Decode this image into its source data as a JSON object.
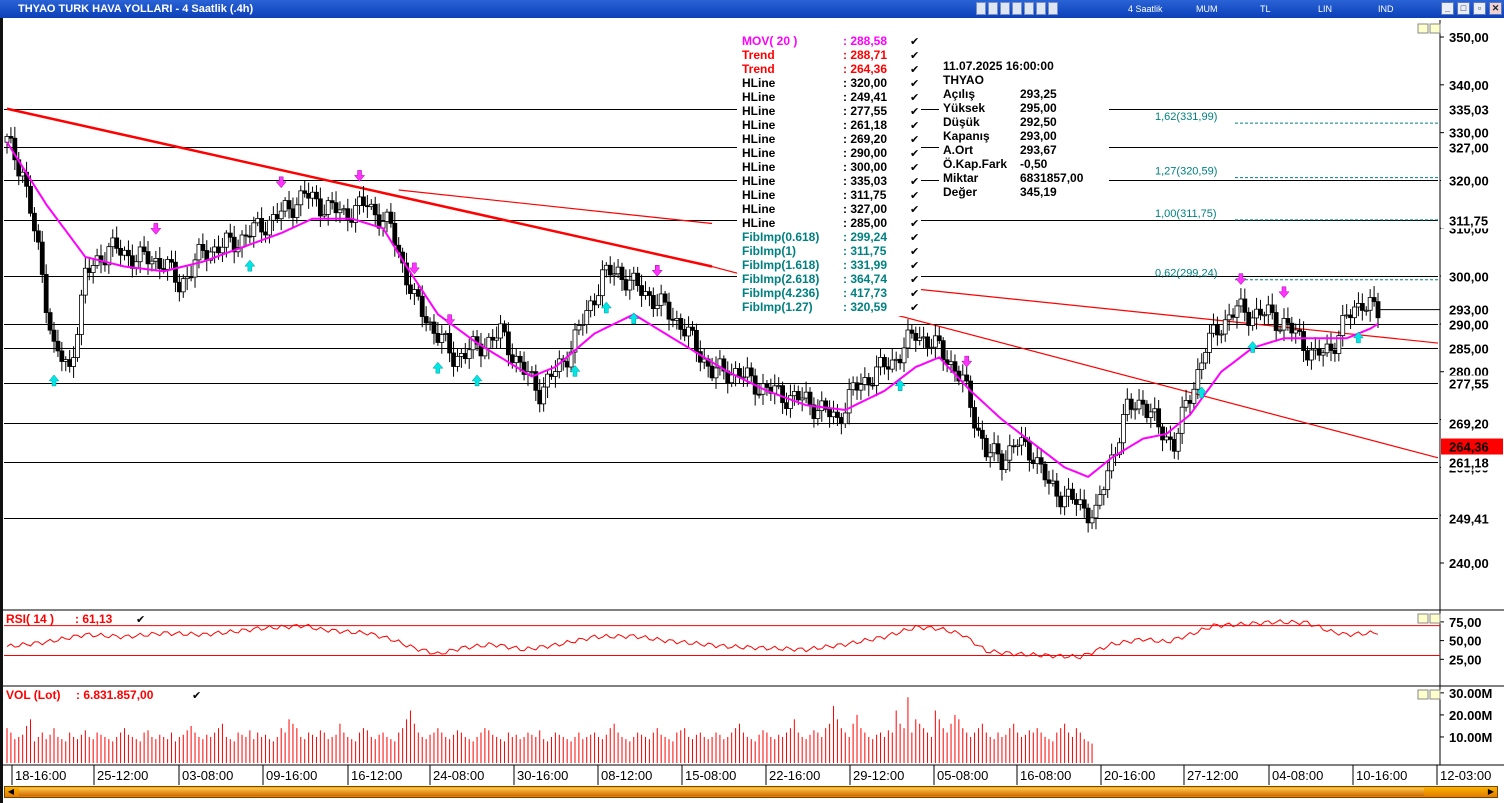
{
  "window": {
    "title": "THYAO TURK HAVA YOLLARI - 4 Saatlik (.4h)",
    "menu": [
      "4 Saatlik",
      "MUM",
      "TL",
      "LIN",
      "IND"
    ]
  },
  "colors": {
    "up": "#ffffff",
    "down": "#000000",
    "mov": "#ff00ff",
    "trend": "#ff0000",
    "hline": "#000000",
    "fib": "#008080",
    "rsi": "#ff0000",
    "vol": "#ff0000",
    "highlight": "#ff0000"
  },
  "legend": {
    "rows": [
      {
        "name": "MOV( 20 )",
        "value": ": 288,58",
        "color": "#ff00ff"
      },
      {
        "name": "Trend",
        "value": ": 288,71",
        "color": "#ff0000"
      },
      {
        "name": "Trend",
        "value": ": 264,36",
        "color": "#ff0000"
      },
      {
        "name": "HLine",
        "value": ": 320,00",
        "color": "#000000"
      },
      {
        "name": "HLine",
        "value": ": 249,41",
        "color": "#000000"
      },
      {
        "name": "HLine",
        "value": ": 277,55",
        "color": "#000000"
      },
      {
        "name": "HLine",
        "value": ": 261,18",
        "color": "#000000"
      },
      {
        "name": "HLine",
        "value": ": 269,20",
        "color": "#000000"
      },
      {
        "name": "HLine",
        "value": ": 290,00",
        "color": "#000000"
      },
      {
        "name": "HLine",
        "value": ": 300,00",
        "color": "#000000"
      },
      {
        "name": "HLine",
        "value": ": 335,03",
        "color": "#000000"
      },
      {
        "name": "HLine",
        "value": ": 311,75",
        "color": "#000000"
      },
      {
        "name": "HLine",
        "value": ": 327,00",
        "color": "#000000"
      },
      {
        "name": "HLine",
        "value": ": 285,00",
        "color": "#000000"
      },
      {
        "name": "FibImp(0.618)",
        "value": ": 299,24",
        "color": "#008080"
      },
      {
        "name": "FibImp(1)",
        "value": ": 311,75",
        "color": "#008080"
      },
      {
        "name": "FibImp(1.618)",
        "value": ": 331,99",
        "color": "#008080"
      },
      {
        "name": "FibImp(2.618)",
        "value": ": 364,74",
        "color": "#008080"
      },
      {
        "name": "FibImp(4.236)",
        "value": ": 417,73",
        "color": "#008080"
      },
      {
        "name": "FibImp(1.27)",
        "value": ": 320,59",
        "color": "#008080"
      }
    ]
  },
  "info": {
    "datetime": "11.07.2025  16:00:00",
    "symbol": "THYAO",
    "rows": [
      {
        "label": "Açılış",
        "value": "293,25"
      },
      {
        "label": "Yüksek",
        "value": "295,00"
      },
      {
        "label": "Düşük",
        "value": "292,50"
      },
      {
        "label": "Kapanış",
        "value": "293,00"
      },
      {
        "label": "A.Ort",
        "value": "293,67"
      },
      {
        "label": "Ö.Kap.Fark",
        "value": "-0,50"
      },
      {
        "label": "Miktar",
        "value": "6831857,00"
      },
      {
        "label": "Değer",
        "value": "345,19"
      }
    ]
  },
  "rsi_panel": {
    "label": "RSI( 14 )",
    "value": ": 61,13",
    "levels": [
      70,
      30
    ],
    "ticks": [
      "75,00",
      "50,00",
      "25,00"
    ]
  },
  "vol_panel": {
    "label": "VOL (Lot)",
    "value": ": 6.831.857,00",
    "ticks": [
      "30.00M",
      "20.00M",
      "10.00M"
    ]
  },
  "chart_data": {
    "type": "candlestick",
    "title": "THYAO TURK HAVA YOLLARI - 4 Saatlik (.4h)",
    "ylim": [
      232,
      356
    ],
    "y_ticks": [
      350,
      340,
      330,
      320,
      310,
      300,
      290,
      280,
      270,
      260,
      250,
      240
    ],
    "y_tick_labels": [
      "350,00",
      "340,00",
      "330,00",
      "320,00",
      "310,00",
      "300,00",
      "290,00",
      "280,00",
      "270,00",
      "260,00",
      "250,00",
      "240,00"
    ],
    "x_labels": [
      "18-16:00",
      "25-12:00",
      "03-08:00",
      "09-16:00",
      "16-12:00",
      "24-08:00",
      "30-16:00",
      "08-12:00",
      "15-08:00",
      "22-16:00",
      "29-12:00",
      "05-08:00",
      "16-08:00",
      "20-16:00",
      "27-12:00",
      "04-08:00",
      "10-16:00",
      "12-03:00"
    ],
    "price_anchors": [
      [
        0,
        328
      ],
      [
        4,
        322
      ],
      [
        8,
        305
      ],
      [
        12,
        285
      ],
      [
        16,
        280
      ],
      [
        20,
        300
      ],
      [
        26,
        306
      ],
      [
        32,
        304
      ],
      [
        40,
        303
      ],
      [
        44,
        298
      ],
      [
        50,
        305
      ],
      [
        58,
        307
      ],
      [
        64,
        310
      ],
      [
        70,
        313
      ],
      [
        76,
        317
      ],
      [
        80,
        315
      ],
      [
        86,
        313
      ],
      [
        92,
        315
      ],
      [
        98,
        310
      ],
      [
        104,
        295
      ],
      [
        108,
        290
      ],
      [
        114,
        283
      ],
      [
        120,
        285
      ],
      [
        126,
        288
      ],
      [
        132,
        280
      ],
      [
        136,
        276
      ],
      [
        142,
        282
      ],
      [
        148,
        292
      ],
      [
        152,
        300
      ],
      [
        156,
        301
      ],
      [
        160,
        298
      ],
      [
        164,
        296
      ],
      [
        168,
        293
      ],
      [
        172,
        290
      ],
      [
        176,
        285
      ],
      [
        180,
        280
      ],
      [
        186,
        280
      ],
      [
        192,
        277
      ],
      [
        198,
        275
      ],
      [
        204,
        274
      ],
      [
        208,
        272
      ],
      [
        212,
        270
      ],
      [
        216,
        276
      ],
      [
        222,
        280
      ],
      [
        226,
        282
      ],
      [
        232,
        288
      ],
      [
        236,
        286
      ],
      [
        240,
        283
      ],
      [
        244,
        278
      ],
      [
        250,
        263
      ],
      [
        254,
        262
      ],
      [
        258,
        265
      ],
      [
        262,
        263
      ],
      [
        266,
        256
      ],
      [
        270,
        254
      ],
      [
        274,
        252
      ],
      [
        278,
        250
      ],
      [
        282,
        262
      ],
      [
        286,
        272
      ],
      [
        290,
        274
      ],
      [
        294,
        268
      ],
      [
        298,
        265
      ],
      [
        302,
        275
      ],
      [
        306,
        285
      ],
      [
        310,
        290
      ],
      [
        314,
        293
      ],
      [
        318,
        292
      ],
      [
        322,
        292
      ],
      [
        326,
        290
      ],
      [
        330,
        287
      ],
      [
        334,
        283
      ],
      [
        338,
        285
      ],
      [
        342,
        291
      ],
      [
        346,
        295
      ],
      [
        350,
        292
      ]
    ],
    "mov20_anchors": [
      [
        0,
        328
      ],
      [
        10,
        315
      ],
      [
        20,
        304
      ],
      [
        30,
        302
      ],
      [
        40,
        301
      ],
      [
        50,
        303
      ],
      [
        60,
        306
      ],
      [
        70,
        309
      ],
      [
        78,
        312
      ],
      [
        88,
        312
      ],
      [
        96,
        310
      ],
      [
        102,
        302
      ],
      [
        110,
        292
      ],
      [
        120,
        286
      ],
      [
        128,
        282
      ],
      [
        134,
        279
      ],
      [
        140,
        281
      ],
      [
        150,
        288
      ],
      [
        160,
        292
      ],
      [
        168,
        288
      ],
      [
        176,
        284
      ],
      [
        184,
        280
      ],
      [
        194,
        276
      ],
      [
        204,
        273
      ],
      [
        214,
        272
      ],
      [
        224,
        276
      ],
      [
        232,
        281
      ],
      [
        238,
        283
      ],
      [
        246,
        276
      ],
      [
        254,
        270
      ],
      [
        262,
        265
      ],
      [
        270,
        260
      ],
      [
        276,
        258
      ],
      [
        282,
        262
      ],
      [
        290,
        266
      ],
      [
        296,
        267
      ],
      [
        302,
        271
      ],
      [
        310,
        280
      ],
      [
        318,
        285
      ],
      [
        326,
        287
      ],
      [
        334,
        287
      ],
      [
        342,
        287
      ],
      [
        348,
        289
      ],
      [
        350,
        290
      ]
    ],
    "hlines": [
      {
        "value": 335.03,
        "label": "335,03"
      },
      {
        "value": 327.0,
        "label": "327,00"
      },
      {
        "value": 320.0,
        "label": "320,00"
      },
      {
        "value": 311.75,
        "label": "311,75"
      },
      {
        "value": 300.0,
        "label": "300,00"
      },
      {
        "value": 290.0,
        "label": "290,00"
      },
      {
        "value": 285.0,
        "label": "285,00"
      },
      {
        "value": 277.55,
        "label": "277,55"
      },
      {
        "value": 269.2,
        "label": "269,20"
      },
      {
        "value": 261.18,
        "label": "261,18"
      },
      {
        "value": 249.41,
        "label": "249,41"
      }
    ],
    "last_price_label": "293,00",
    "last_price": 293.0,
    "trend_marker": {
      "value": 264.36,
      "label": "264,36"
    },
    "fib_levels": [
      {
        "label": "1,62(331,99)",
        "value": 331.99
      },
      {
        "label": "1,27(320,59)",
        "value": 320.59
      },
      {
        "label": "1,00(311,75)",
        "value": 311.75
      },
      {
        "label": "0,62(299,24)",
        "value": 299.24
      }
    ],
    "trend_lines": [
      {
        "from": [
          0,
          335
        ],
        "to": [
          180,
          302
        ],
        "width": "thick"
      },
      {
        "from": [
          100,
          318
        ],
        "to": [
          180,
          311
        ],
        "width": "thin"
      },
      {
        "from": [
          180,
          302
        ],
        "to": [
          350,
          262
        ],
        "width": "thin"
      },
      {
        "from": [
          200,
          300
        ],
        "to": [
          350,
          286
        ],
        "width": "thin"
      }
    ],
    "buy_arrows": [
      12,
      62,
      110,
      120,
      145,
      153,
      160,
      228,
      305,
      318,
      345
    ],
    "sell_arrows": [
      38,
      70,
      90,
      104,
      113,
      166,
      245,
      315,
      326
    ],
    "rsi_anchors": [
      [
        0,
        42
      ],
      [
        10,
        48
      ],
      [
        20,
        58
      ],
      [
        30,
        55
      ],
      [
        40,
        60
      ],
      [
        50,
        58
      ],
      [
        58,
        62
      ],
      [
        64,
        66
      ],
      [
        70,
        68
      ],
      [
        76,
        70
      ],
      [
        80,
        65
      ],
      [
        86,
        62
      ],
      [
        92,
        60
      ],
      [
        98,
        52
      ],
      [
        104,
        40
      ],
      [
        110,
        32
      ],
      [
        116,
        40
      ],
      [
        124,
        45
      ],
      [
        132,
        38
      ],
      [
        140,
        44
      ],
      [
        150,
        55
      ],
      [
        160,
        56
      ],
      [
        168,
        50
      ],
      [
        176,
        46
      ],
      [
        184,
        42
      ],
      [
        194,
        40
      ],
      [
        204,
        38
      ],
      [
        214,
        45
      ],
      [
        224,
        55
      ],
      [
        232,
        68
      ],
      [
        238,
        66
      ],
      [
        244,
        58
      ],
      [
        250,
        36
      ],
      [
        258,
        32
      ],
      [
        266,
        30
      ],
      [
        274,
        28
      ],
      [
        282,
        45
      ],
      [
        290,
        52
      ],
      [
        296,
        48
      ],
      [
        302,
        58
      ],
      [
        308,
        70
      ],
      [
        316,
        72
      ],
      [
        324,
        75
      ],
      [
        332,
        74
      ],
      [
        338,
        62
      ],
      [
        342,
        58
      ],
      [
        348,
        60
      ],
      [
        350,
        61
      ]
    ],
    "volume_lot_millions": [
      14,
      12,
      9,
      10,
      11,
      15,
      18,
      8,
      10,
      12,
      9,
      11,
      14,
      10,
      9,
      8,
      12,
      10,
      9,
      11,
      13,
      10,
      9,
      12,
      11,
      10,
      9,
      8,
      10,
      12,
      14,
      11,
      10,
      9,
      8,
      12,
      13,
      10,
      9,
      11,
      10,
      9,
      12,
      8,
      10,
      11,
      13,
      15,
      12,
      10,
      9,
      11,
      10,
      12,
      14,
      16,
      10,
      9,
      8,
      12,
      11,
      10,
      13,
      9,
      12,
      10,
      11,
      9,
      8,
      10,
      14,
      12,
      18,
      16,
      14,
      10,
      9,
      12,
      11,
      10,
      13,
      12,
      9,
      10,
      11,
      16,
      12,
      10,
      9,
      8,
      12,
      14,
      13,
      10,
      9,
      11,
      12,
      10,
      9,
      8,
      12,
      14,
      18,
      22,
      16,
      12,
      10,
      9,
      11,
      12,
      14,
      12,
      10,
      9,
      11,
      13,
      12,
      10,
      9,
      8,
      10,
      12,
      14,
      13,
      11,
      10,
      9,
      8,
      12,
      10,
      11,
      9,
      10,
      12,
      11,
      10,
      13,
      9,
      8,
      10,
      12,
      11,
      10,
      9,
      8,
      10,
      12,
      9,
      10,
      11,
      12,
      10,
      9,
      11,
      14,
      16,
      12,
      10,
      9,
      8,
      10,
      12,
      11,
      10,
      9,
      12,
      14,
      11,
      10,
      9,
      8,
      12,
      13,
      14,
      10,
      9,
      11,
      12,
      10,
      9,
      10,
      12,
      11,
      9,
      10,
      12,
      14,
      16,
      12,
      10,
      9,
      8,
      11,
      13,
      12,
      10,
      9,
      11,
      10,
      12,
      14,
      18,
      12,
      10,
      9,
      11,
      13,
      12,
      10,
      14,
      16,
      24,
      18,
      14,
      12,
      10,
      16,
      20,
      14,
      12,
      10,
      9,
      11,
      12,
      10,
      13,
      12,
      22,
      16,
      14,
      28,
      12,
      18,
      16,
      14,
      12,
      10,
      22,
      18,
      14,
      12,
      16,
      20,
      18,
      14,
      12,
      10,
      12,
      14,
      16,
      12,
      10,
      9,
      12,
      10,
      11,
      14,
      16,
      12,
      10,
      11,
      13,
      12,
      14,
      12,
      10,
      9,
      8,
      12,
      14,
      16,
      12,
      10,
      14,
      12,
      9,
      8,
      7
    ]
  }
}
